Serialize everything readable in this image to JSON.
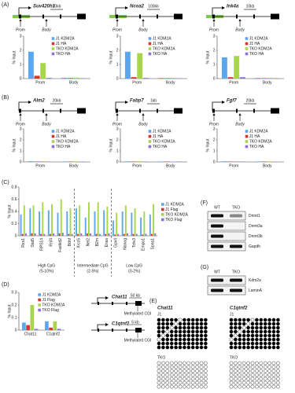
{
  "panel_labels": [
    "(A)",
    "(B)",
    "(C)",
    "(D)",
    "(E)",
    "(F)",
    "(G)"
  ],
  "gene_maps": [
    {
      "gene": "Suv420h1",
      "scale": "20kb"
    },
    {
      "gene": "Ncoa2",
      "scale": "100kb"
    },
    {
      "gene": "Ink4a",
      "scale": "10kb"
    },
    {
      "gene": "Alm2",
      "scale": "20kb"
    },
    {
      "gene": "Fabp7",
      "scale": "1kb"
    },
    {
      "gene": "Fgf7",
      "scale": "20kb"
    }
  ],
  "prom": "Prom",
  "body": "Body",
  "chart_data": [
    {
      "type": "bar",
      "y_label": "% Input",
      "categories": [
        "Prom",
        "Body"
      ],
      "ylim": [
        0,
        3
      ],
      "yticks": [
        0,
        1,
        2,
        3
      ],
      "legend": "upper right",
      "series": [
        {
          "name": "J1 KDM2A",
          "color": "#5aa7ee",
          "values": [
            1.9,
            0.06
          ]
        },
        {
          "name": "J1 HA",
          "color": "#d9342b",
          "values": [
            0.2,
            0.04
          ]
        },
        {
          "name": "TKO KDM2A",
          "color": "#a8d64a",
          "values": [
            1.1,
            0.07
          ]
        },
        {
          "name": "TKO HA",
          "color": "#8c72d6",
          "values": [
            0.05,
            0.03
          ]
        }
      ]
    },
    {
      "type": "bar",
      "y_label": "% Input",
      "categories": [
        "Prom",
        "Body"
      ],
      "ylim": [
        0,
        3
      ],
      "yticks": [
        0,
        1,
        2,
        3
      ],
      "legend": "upper right",
      "series": [
        {
          "name": "J1 KDM2A",
          "color": "#5aa7ee",
          "values": [
            1.9,
            0.05
          ]
        },
        {
          "name": "J1 HA",
          "color": "#d9342b",
          "values": [
            0.1,
            0.03
          ]
        },
        {
          "name": "TKO KDM2A",
          "color": "#a8d64a",
          "values": [
            1.8,
            0.06
          ]
        },
        {
          "name": "TKO HA",
          "color": "#8c72d6",
          "values": [
            0.05,
            0.03
          ]
        }
      ]
    },
    {
      "type": "bar",
      "y_label": "% Input",
      "categories": [
        "Prom",
        "Body"
      ],
      "ylim": [
        0,
        3
      ],
      "yticks": [
        0,
        1,
        2,
        3
      ],
      "legend": "upper right",
      "series": [
        {
          "name": "J1 KDM2A",
          "color": "#5aa7ee",
          "values": [
            1.5,
            0.05
          ]
        },
        {
          "name": "J1 HA",
          "color": "#d9342b",
          "values": [
            0.1,
            0.03
          ]
        },
        {
          "name": "TKO KDM2A",
          "color": "#a8d64a",
          "values": [
            1.6,
            0.06
          ]
        },
        {
          "name": "TKO HA",
          "color": "#8c72d6",
          "values": [
            0.1,
            0.03
          ]
        }
      ]
    },
    {
      "type": "bar",
      "y_label": "% Input",
      "categories": [
        "Prom",
        "Body"
      ],
      "ylim": [
        0,
        3
      ],
      "yticks": [
        0,
        1,
        2,
        3
      ],
      "legend": "upper right",
      "series": [
        {
          "name": "J1 KDM2A",
          "color": "#5aa7ee",
          "values": [
            0.06,
            0.04
          ]
        },
        {
          "name": "J1 HA",
          "color": "#d9342b",
          "values": [
            0.03,
            0.03
          ]
        },
        {
          "name": "TKO KDM2A",
          "color": "#a8d64a",
          "values": [
            0.07,
            0.05
          ]
        },
        {
          "name": "TKO HA",
          "color": "#8c72d6",
          "values": [
            0.03,
            0.03
          ]
        }
      ]
    },
    {
      "type": "bar",
      "y_label": "% Input",
      "categories": [
        "Prom",
        "Body"
      ],
      "ylim": [
        0,
        3
      ],
      "yticks": [
        0,
        1,
        2,
        3
      ],
      "legend": "upper right",
      "series": [
        {
          "name": "J1 KDM2A",
          "color": "#5aa7ee",
          "values": [
            0.05,
            0.04
          ]
        },
        {
          "name": "J1 HA",
          "color": "#d9342b",
          "values": [
            0.03,
            0.03
          ]
        },
        {
          "name": "TKO KDM2A",
          "color": "#a8d64a",
          "values": [
            0.06,
            0.05
          ]
        },
        {
          "name": "TKO HA",
          "color": "#8c72d6",
          "values": [
            0.03,
            0.03
          ]
        }
      ]
    },
    {
      "type": "bar",
      "y_label": "% Input",
      "categories": [
        "Prom",
        "Body"
      ],
      "ylim": [
        0,
        3
      ],
      "yticks": [
        0,
        1,
        2,
        3
      ],
      "legend": "upper right",
      "series": [
        {
          "name": "J1 KDM2A",
          "color": "#5aa7ee",
          "values": [
            0.05,
            0.04
          ]
        },
        {
          "name": "J1 HA",
          "color": "#d9342b",
          "values": [
            0.03,
            0.03
          ]
        },
        {
          "name": "TKO KDM2A",
          "color": "#a8d64a",
          "values": [
            0.06,
            0.05
          ]
        },
        {
          "name": "TKO HA",
          "color": "#8c72d6",
          "values": [
            0.03,
            0.03
          ]
        }
      ]
    },
    {
      "type": "bar",
      "y_label": "% Input",
      "categories": [
        "Rex1",
        "Stat5",
        "RPS14",
        "Rnf4",
        "Fastkd2",
        "Bdnf",
        "Xrcc5",
        "Nel2",
        "B2m",
        "Ensa",
        "Gpx4",
        "Nanog",
        "Tcfe3",
        "Empo1",
        "Spna1"
      ],
      "ylim": [
        0,
        0.8
      ],
      "yticks": [
        0,
        0.2,
        0.4,
        0.6,
        0.8
      ],
      "legend": "right",
      "series": [
        {
          "name": "J1 KDM2A",
          "color": "#5aa7ee",
          "values": [
            0.35,
            0.45,
            0.4,
            0.42,
            0.38,
            0.4,
            0.45,
            0.3,
            0.4,
            0.42,
            0.25,
            0.4,
            0.38,
            0.3,
            0.35
          ]
        },
        {
          "name": "J1 Flag",
          "color": "#d9342b",
          "values": [
            0.03,
            0.04,
            0.03,
            0.03,
            0.04,
            0.03,
            0.03,
            0.04,
            0.03,
            0.03,
            0.02,
            0.03,
            0.03,
            0.02,
            0.03
          ]
        },
        {
          "name": "TKO KDM2A",
          "color": "#a8d64a",
          "values": [
            0.5,
            0.5,
            0.55,
            0.52,
            0.6,
            0.45,
            0.5,
            0.55,
            0.55,
            0.48,
            0.38,
            0.5,
            0.45,
            0.4,
            0.52
          ]
        },
        {
          "name": "TKO Flag",
          "color": "#8c72d6",
          "values": [
            0.04,
            0.04,
            0.03,
            0.04,
            0.05,
            0.03,
            0.04,
            0.04,
            0.03,
            0.04,
            0.03,
            0.04,
            0.03,
            0.03,
            0.04
          ]
        }
      ]
    },
    {
      "type": "bar",
      "y_label": "% Input",
      "categories": [
        "Chat11",
        "C1qtnf2"
      ],
      "ylim": [
        0,
        0.3
      ],
      "yticks": [
        0,
        0.1,
        0.2,
        0.3
      ],
      "legend": "upper right",
      "series": [
        {
          "name": "J1 KDM2A",
          "color": "#5aa7ee",
          "values": [
            0.06,
            0.07
          ]
        },
        {
          "name": "J1 Flag",
          "color": "#d9342b",
          "values": [
            0.04,
            0.02
          ]
        },
        {
          "name": "TKO KDM2A",
          "color": "#a8d64a",
          "values": [
            0.2,
            0.07
          ]
        },
        {
          "name": "TKO Flag",
          "color": "#8c72d6",
          "values": [
            0.01,
            0.01
          ]
        }
      ]
    }
  ],
  "cpg_groups": [
    {
      "label": "High CpG",
      "range": "(5-10%)"
    },
    {
      "label": "Intermediate CpG",
      "range": "(2-5%)"
    },
    {
      "label": "Low CpG",
      "range": "(0-2%)"
    }
  ],
  "d_maps": [
    {
      "gene": "Chat11",
      "scale": "50 kb"
    },
    {
      "gene": "C1qtnf2",
      "scale": "5 kb"
    }
  ],
  "methylated": "Methylated CGI",
  "bisulfite": {
    "genes": [
      "Chat11",
      "C1qtnf2"
    ],
    "lines": [
      "J1",
      "TKO"
    ]
  },
  "blot_f": {
    "lanes": [
      "WT",
      "TKO"
    ],
    "bands": [
      "Dnmt1",
      "Dnmt3a",
      "Dnmt3b",
      "Gapdh"
    ]
  },
  "blot_g": {
    "lanes": [
      "WT",
      "TKO"
    ],
    "bands": [
      "Kdm2a",
      "LaminA"
    ]
  }
}
